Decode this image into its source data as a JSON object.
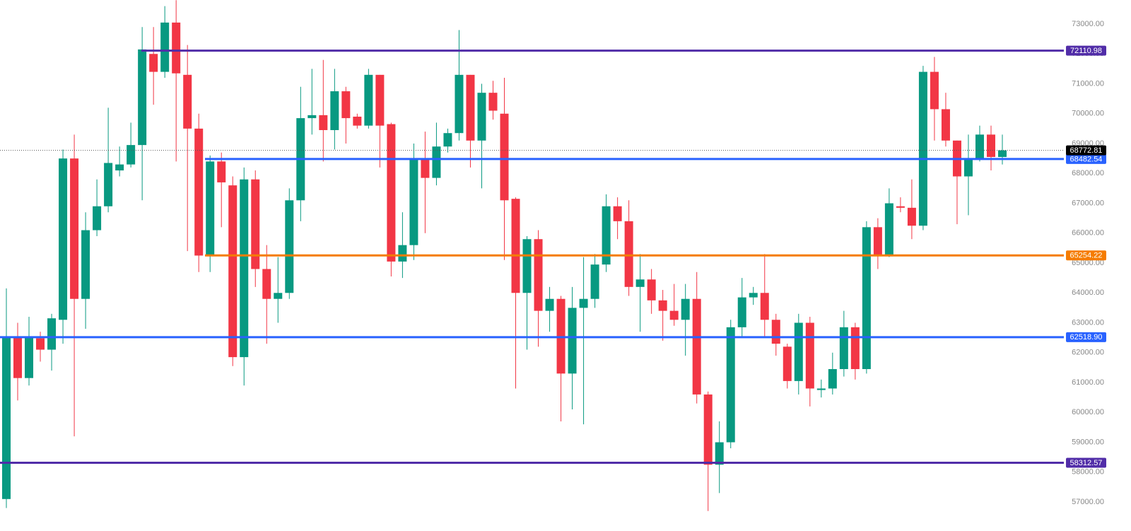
{
  "chart_data": {
    "type": "candlestick",
    "up_color": "#089981",
    "down_color": "#f23645",
    "open": [
      57100,
      62520,
      61150,
      62480,
      62100,
      63100,
      68500,
      63800,
      66100,
      66900,
      68100,
      68300,
      68950,
      72000,
      71400,
      73050,
      71300,
      69500,
      65250,
      68400,
      67600,
      61850,
      67800,
      64800,
      63800,
      64000,
      67100,
      69850,
      69950,
      69450,
      70750,
      69900,
      69600,
      71300,
      69650,
      65050,
      65600,
      68500,
      67850,
      68900,
      69350,
      71300,
      69100,
      70700,
      70000,
      67150,
      64000,
      65800,
      63400,
      63800,
      61300,
      63500,
      63800,
      64950,
      66900,
      66400,
      64200,
      64450,
      63750,
      63400,
      63100,
      63800,
      60600,
      58250,
      59000,
      62850,
      63850,
      64000,
      63100,
      62200,
      61050,
      63000,
      60750,
      60800,
      61450,
      62850,
      61450,
      66200,
      65250,
      66900,
      66850,
      66250,
      71400,
      70150,
      69100,
      67900,
      68500,
      69300,
      68550
    ],
    "high": [
      64150,
      63000,
      63200,
      62700,
      63300,
      68800,
      69300,
      66700,
      67800,
      70200,
      68900,
      69700,
      72900,
      72900,
      73600,
      73800,
      72300,
      70000,
      68600,
      68700,
      67900,
      68200,
      68100,
      65600,
      65200,
      67500,
      70900,
      71500,
      71800,
      71500,
      70900,
      70000,
      71500,
      71300,
      69700,
      66700,
      69000,
      69400,
      69700,
      69500,
      72800,
      71300,
      71000,
      71100,
      71200,
      67200,
      65900,
      66100,
      64200,
      63900,
      64200,
      65200,
      65300,
      67300,
      67200,
      67100,
      65300,
      64800,
      64100,
      64300,
      64300,
      64700,
      60700,
      59700,
      63100,
      64500,
      64200,
      65300,
      63300,
      62300,
      63300,
      63200,
      61100,
      62000,
      63400,
      63000,
      66400,
      66500,
      67500,
      67200,
      67800,
      71600,
      71900,
      70700,
      69100,
      69300,
      69600,
      69600,
      69300
    ],
    "low": [
      56800,
      60400,
      60900,
      61700,
      61400,
      62300,
      59200,
      62800,
      65900,
      66700,
      67900,
      68200,
      67100,
      70300,
      71200,
      68400,
      65400,
      64700,
      64700,
      66200,
      61550,
      60900,
      64200,
      62300,
      63000,
      63800,
      66400,
      69300,
      68400,
      68800,
      69000,
      69500,
      69500,
      68200,
      64550,
      64500,
      65100,
      66000,
      67600,
      68700,
      69100,
      68200,
      67500,
      69800,
      65100,
      60800,
      62100,
      62200,
      62700,
      59700,
      60100,
      59600,
      63500,
      64700,
      65800,
      63900,
      62700,
      63300,
      62400,
      62900,
      61900,
      60300,
      56700,
      57300,
      58800,
      62500,
      63600,
      62500,
      61900,
      60800,
      60600,
      60200,
      60500,
      60600,
      61200,
      61100,
      61300,
      64800,
      65200,
      66700,
      65800,
      66100,
      69100,
      68900,
      66300,
      66600,
      68400,
      68100,
      68300
    ],
    "close": [
      62520,
      61150,
      62500,
      62100,
      63150,
      68500,
      63800,
      66100,
      66900,
      68350,
      68300,
      68950,
      72150,
      71400,
      73050,
      71350,
      69500,
      65250,
      68400,
      67700,
      61850,
      67800,
      64800,
      63800,
      64000,
      67100,
      69850,
      69950,
      69450,
      70750,
      69850,
      69600,
      71300,
      69600,
      65050,
      65600,
      68500,
      67850,
      68900,
      69350,
      71300,
      69100,
      70700,
      70100,
      67100,
      64000,
      65800,
      63400,
      63800,
      61300,
      63500,
      63800,
      64950,
      66900,
      66400,
      64200,
      64450,
      63750,
      63400,
      63100,
      63800,
      60600,
      58250,
      59000,
      62850,
      63850,
      64000,
      63100,
      62300,
      61050,
      63000,
      60800,
      60800,
      61450,
      62850,
      61450,
      66200,
      65250,
      67000,
      66850,
      66250,
      71400,
      70150,
      69100,
      67900,
      68500,
      69300,
      68550,
      68773
    ],
    "ylim": [
      56030,
      73805
    ],
    "yticks": [
      {
        "value": 57000,
        "label": "57000.00"
      },
      {
        "value": 58000,
        "label": "58000.00"
      },
      {
        "value": 59000,
        "label": "59000.00"
      },
      {
        "value": 60000,
        "label": "60000.00"
      },
      {
        "value": 61000,
        "label": "61000.00"
      },
      {
        "value": 62000,
        "label": "62000.00"
      },
      {
        "value": 63000,
        "label": "63000.00"
      },
      {
        "value": 64000,
        "label": "64000.00"
      },
      {
        "value": 65000,
        "label": "65000.00"
      },
      {
        "value": 66000,
        "label": "66000.00"
      },
      {
        "value": 67000,
        "label": "67000.00"
      },
      {
        "value": 68000,
        "label": "68000.00"
      },
      {
        "value": 69000,
        "label": "69000.00"
      },
      {
        "value": 70000,
        "label": "70000.00"
      },
      {
        "value": 71000,
        "label": "71000.00"
      },
      {
        "value": 72000,
        "label": "72000.00"
      },
      {
        "value": 73000,
        "label": "73000.00"
      }
    ],
    "levels": [
      {
        "value": 72110.98,
        "label": "72110.98",
        "color": "#512da8"
      },
      {
        "value": 68482.54,
        "label": "68482.54",
        "color": "#2962ff"
      },
      {
        "value": 65254.22,
        "label": "65254.22",
        "color": "#f57c00"
      },
      {
        "value": 62518.9,
        "label": "62518.90",
        "color": "#2962ff"
      },
      {
        "value": 58312.57,
        "label": "58312.57",
        "color": "#512da8"
      }
    ],
    "last_price": {
      "value": 68772.81,
      "label": "68772.81",
      "color": "#000000"
    }
  }
}
